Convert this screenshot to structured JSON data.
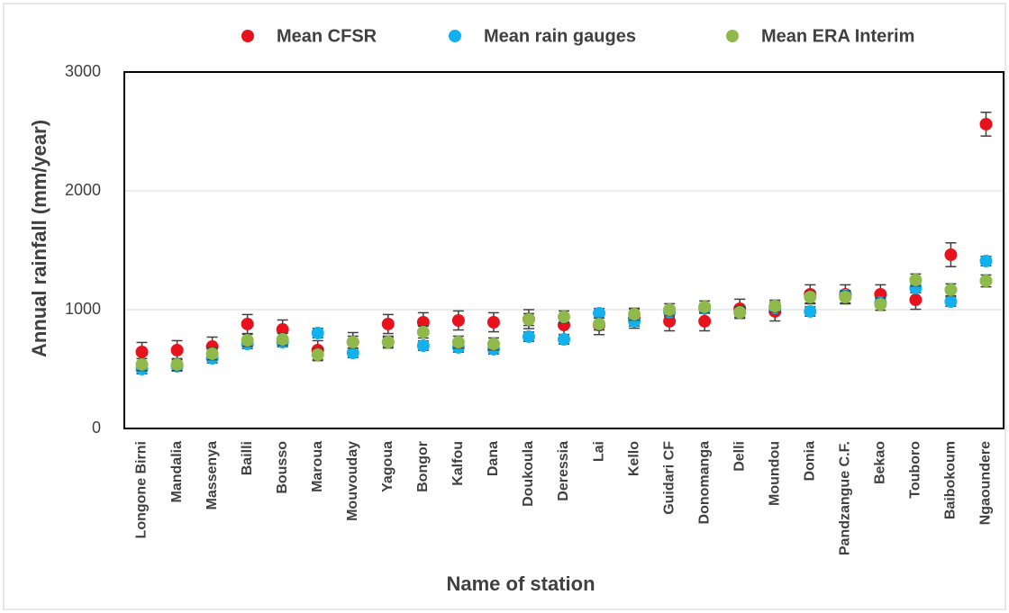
{
  "chart_data": {
    "type": "scatter",
    "x_label": "Name of station",
    "y_label": "Annual rainfall (mm/year)",
    "categories": [
      "Longone Birni",
      "Mandalia",
      "Massenya",
      "Bailli",
      "Bousso",
      "Maroua",
      "Mouvouday",
      "Yagoua",
      "Bongor",
      "Kalfou",
      "Dana",
      "Doukoula",
      "Deressia",
      "Lai",
      "Kello",
      "Guidari CF",
      "Donomanga",
      "Delli",
      "Moundou",
      "Donia",
      "Pandzangue C.F.",
      "Bekao",
      "Touboro",
      "Baibokoum",
      "Ngaoundere"
    ],
    "series": [
      {
        "name": "Mean CFSR",
        "color": "#e8121c",
        "values": [
          644,
          659,
          689,
          879,
          833,
          659,
          727,
          879,
          894,
          909,
          894,
          920,
          871,
          870,
          924,
          902,
          902,
          1008,
          985,
          1129,
          1129,
          1129,
          1083,
          1462,
          2561
        ],
        "errors": [
          80,
          80,
          80,
          80,
          80,
          80,
          80,
          80,
          80,
          80,
          80,
          80,
          80,
          80,
          80,
          80,
          80,
          80,
          80,
          80,
          80,
          80,
          80,
          100,
          100
        ]
      },
      {
        "name": "Mean rain gauges",
        "color": "#12b0ec",
        "values": [
          500,
          523,
          591,
          712,
          727,
          803,
          636,
          727,
          697,
          682,
          667,
          773,
          750,
          970,
          902,
          980,
          1010,
          977,
          1015,
          985,
          1121,
          1060,
          1182,
          1068,
          1409
        ],
        "errors": [
          40,
          40,
          40,
          40,
          40,
          40,
          40,
          40,
          40,
          40,
          40,
          40,
          40,
          40,
          40,
          40,
          40,
          40,
          40,
          40,
          40,
          40,
          40,
          40,
          40
        ]
      },
      {
        "name": "Mean ERA Interim",
        "color": "#8fb94b",
        "values": [
          538,
          538,
          629,
          742,
          750,
          621,
          727,
          727,
          811,
          727,
          712,
          917,
          939,
          879,
          962,
          1000,
          1023,
          977,
          1030,
          1106,
          1106,
          1045,
          1250,
          1167,
          1242
        ],
        "errors": [
          50,
          50,
          50,
          50,
          50,
          50,
          50,
          50,
          50,
          50,
          50,
          50,
          50,
          50,
          50,
          50,
          50,
          50,
          50,
          50,
          50,
          50,
          50,
          50,
          50
        ]
      }
    ],
    "ylim": [
      0,
      3000
    ],
    "yticks": [
      0,
      1000,
      2000,
      3000
    ],
    "grid": true,
    "legend": "top"
  }
}
